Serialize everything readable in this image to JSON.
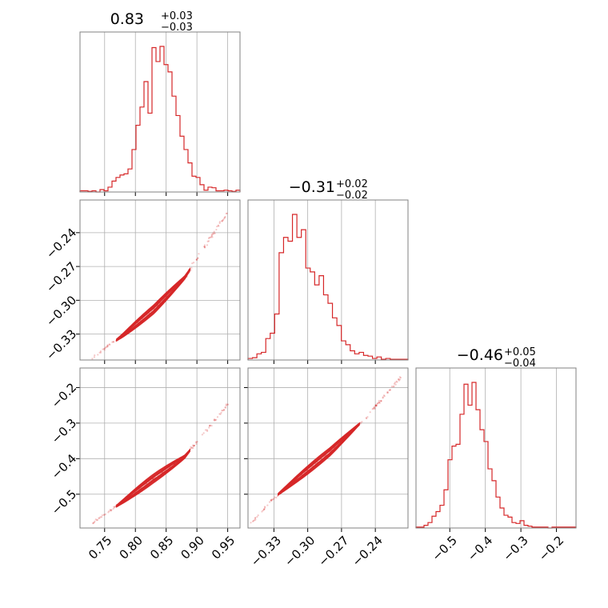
{
  "colors": {
    "line": "#d62728",
    "grid": "#b0b0b0",
    "frame": "#808080",
    "text": "#000000"
  },
  "params": [
    {
      "title_value": "0.83",
      "title_plus": "+0.03",
      "title_minus": "−0.03"
    },
    {
      "title_value": "−0.31",
      "title_plus": "+0.02",
      "title_minus": "−0.02"
    },
    {
      "title_value": "−0.46",
      "title_plus": "+0.05",
      "title_minus": "−0.04"
    }
  ],
  "chart_data": {
    "type": "corner",
    "grid": true,
    "params": [
      {
        "range": [
          0.71,
          0.97
        ],
        "ticks": [
          0.75,
          0.8,
          0.85,
          0.9,
          0.95
        ],
        "tick_labels": [
          "0.75",
          "0.80",
          "0.85",
          "0.90",
          "0.95"
        ]
      },
      {
        "range": [
          -0.353,
          -0.211
        ],
        "ticks": [
          -0.33,
          -0.3,
          -0.27,
          -0.24
        ],
        "tick_labels": [
          "−0.33",
          "−0.30",
          "−0.27",
          "−0.24"
        ]
      },
      {
        "range": [
          -0.595,
          -0.145
        ],
        "ticks": [
          -0.5,
          -0.4,
          -0.3,
          -0.2
        ],
        "tick_labels": [
          "−0.5",
          "−0.4",
          "−0.3",
          "−0.2"
        ]
      }
    ],
    "histograms": [
      {
        "param": 0,
        "edges_from": 0.71,
        "edges_to": 0.97,
        "counts": [
          2,
          2,
          1,
          2,
          0,
          4,
          2,
          8,
          18,
          24,
          28,
          30,
          38,
          70,
          110,
          140,
          182,
          130,
          238,
          215,
          240,
          210,
          198,
          158,
          126,
          92,
          70,
          48,
          26,
          24,
          12,
          3,
          8,
          7,
          2,
          2,
          3,
          2,
          1,
          3
        ]
      },
      {
        "param": 1,
        "edges_from": -0.353,
        "edges_to": -0.211,
        "counts": [
          2,
          3,
          8,
          10,
          28,
          35,
          60,
          140,
          160,
          155,
          190,
          160,
          170,
          120,
          115,
          98,
          110,
          85,
          74,
          55,
          45,
          25,
          20,
          12,
          8,
          10,
          6,
          5,
          2,
          4,
          1,
          2,
          1,
          1,
          1,
          1
        ]
      },
      {
        "param": 2,
        "edges_from": -0.595,
        "edges_to": -0.145,
        "counts": [
          1,
          1,
          3,
          6,
          13,
          18,
          25,
          42,
          75,
          90,
          92,
          125,
          158,
          135,
          160,
          130,
          108,
          95,
          65,
          52,
          34,
          22,
          14,
          12,
          6,
          5,
          8,
          3,
          2,
          1,
          1,
          1,
          1,
          0,
          1,
          1,
          1,
          1,
          1,
          1
        ]
      }
    ],
    "scatter_relations": [
      {
        "x_param": 0,
        "y_param": 1,
        "trend": [
          [
            0.73,
            -0.351
          ],
          [
            0.78,
            -0.331
          ],
          [
            0.83,
            -0.308
          ],
          [
            0.88,
            -0.28
          ],
          [
            0.93,
            -0.238
          ],
          [
            0.95,
            -0.222
          ]
        ]
      },
      {
        "x_param": 0,
        "y_param": 2,
        "trend": [
          [
            0.73,
            -0.583
          ],
          [
            0.78,
            -0.52
          ],
          [
            0.83,
            -0.455
          ],
          [
            0.88,
            -0.395
          ],
          [
            0.93,
            -0.29
          ],
          [
            0.95,
            -0.247
          ]
        ]
      },
      {
        "x_param": 1,
        "y_param": 2,
        "trend": [
          [
            -0.35,
            -0.582
          ],
          [
            -0.33,
            -0.51
          ],
          [
            -0.31,
            -0.458
          ],
          [
            -0.28,
            -0.38
          ],
          [
            -0.25,
            -0.29
          ],
          [
            -0.217,
            -0.17
          ]
        ]
      }
    ]
  }
}
